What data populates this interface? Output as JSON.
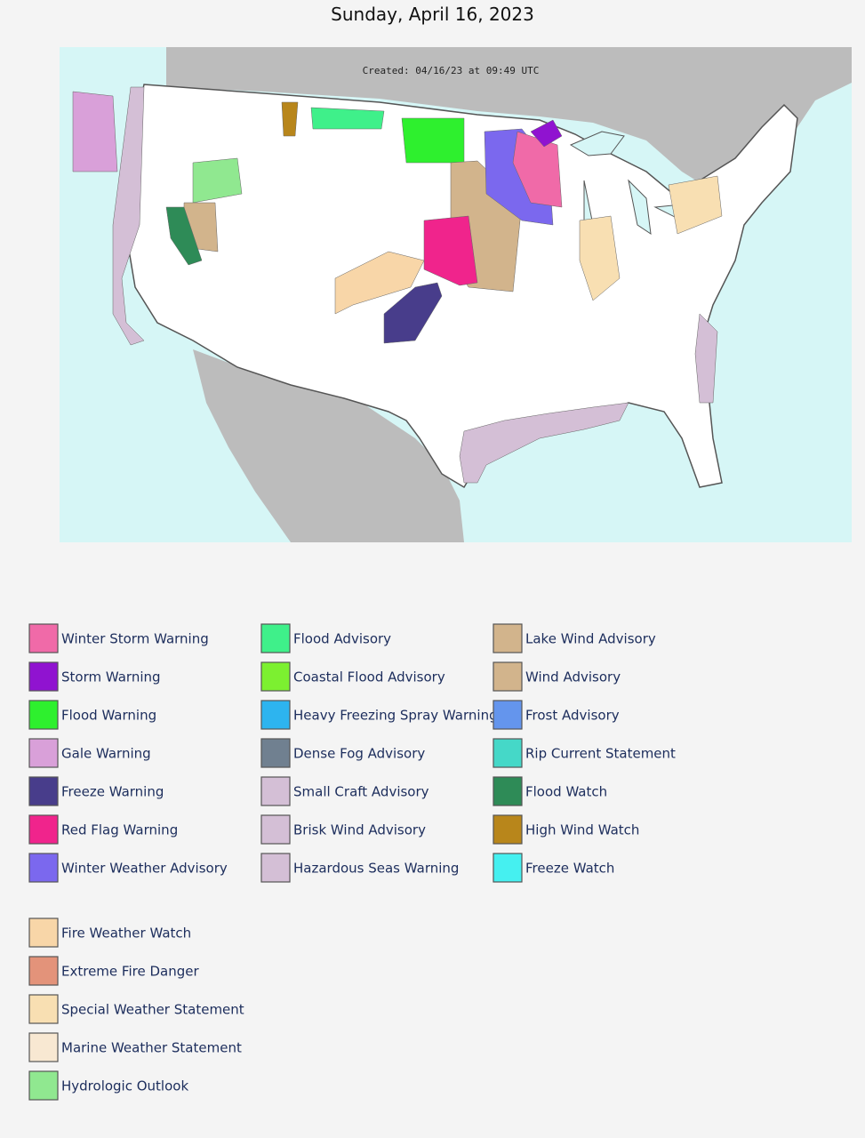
{
  "title": "Sunday, April 16, 2023",
  "map": {
    "created": "Created: 04/16/23 at 09:49 UTC"
  },
  "legend": {
    "columns": [
      [
        {
          "label": "Winter Storm Warning",
          "color": "#f06aa8"
        },
        {
          "label": "Storm Warning",
          "color": "#9013d0"
        },
        {
          "label": "Flood Warning",
          "color": "#2ef02e"
        },
        {
          "label": "Gale Warning",
          "color": "#d9a0d9"
        },
        {
          "label": "Freeze Warning",
          "color": "#483d8b"
        },
        {
          "label": "Red Flag Warning",
          "color": "#f0248c"
        },
        {
          "label": "Winter Weather Advisory",
          "color": "#7b68ee"
        }
      ],
      [
        {
          "label": "Flood Advisory",
          "color": "#3ff08a"
        },
        {
          "label": "Coastal Flood Advisory",
          "color": "#7cf030"
        },
        {
          "label": "Heavy Freezing Spray Warning",
          "color": "#2db4ef"
        },
        {
          "label": "Dense Fog Advisory",
          "color": "#708090"
        },
        {
          "label": "Small Craft Advisory",
          "color": "#d4bfd6"
        },
        {
          "label": "Brisk Wind Advisory",
          "color": "#d4bfd6"
        },
        {
          "label": "Hazardous Seas Warning",
          "color": "#d4bfd6"
        }
      ],
      [
        {
          "label": "Lake Wind Advisory",
          "color": "#d2b48c"
        },
        {
          "label": "Wind Advisory",
          "color": "#d2b48c"
        },
        {
          "label": "Frost Advisory",
          "color": "#6495ed"
        },
        {
          "label": "Rip Current Statement",
          "color": "#45d8c8"
        },
        {
          "label": "Flood Watch",
          "color": "#2e8b57"
        },
        {
          "label": "High Wind Watch",
          "color": "#b8861b"
        },
        {
          "label": "Freeze Watch",
          "color": "#45f0f0"
        }
      ]
    ],
    "extra": [
      {
        "label": "Fire Weather Watch",
        "color": "#f8d6a8"
      },
      {
        "label": "Extreme Fire Danger",
        "color": "#e3937a"
      },
      {
        "label": "Special Weather Statement",
        "color": "#f8dfb2"
      },
      {
        "label": "Marine Weather Statement",
        "color": "#f8e8d2"
      },
      {
        "label": "Hydrologic Outlook",
        "color": "#90e890"
      }
    ]
  }
}
